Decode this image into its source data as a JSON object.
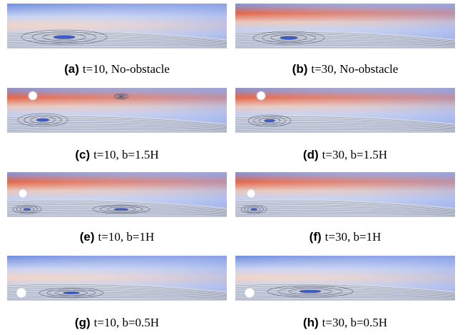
{
  "panels": [
    {
      "label": "(a)",
      "caption": "t=10, No-obstacle"
    },
    {
      "label": "(b)",
      "caption": "t=30, No-obstacle"
    },
    {
      "label": "(c)",
      "caption": "t=10, b=1.5H"
    },
    {
      "label": "(d)",
      "caption": "t=30, b=1.5H"
    },
    {
      "label": "(e)",
      "caption": "t=10, b=1H"
    },
    {
      "label": "(f)",
      "caption": "t=30, b=1H"
    },
    {
      "label": "(g)",
      "caption": "t=10, b=0.5H"
    },
    {
      "label": "(h)",
      "caption": "t=30, b=0.5H"
    }
  ]
}
